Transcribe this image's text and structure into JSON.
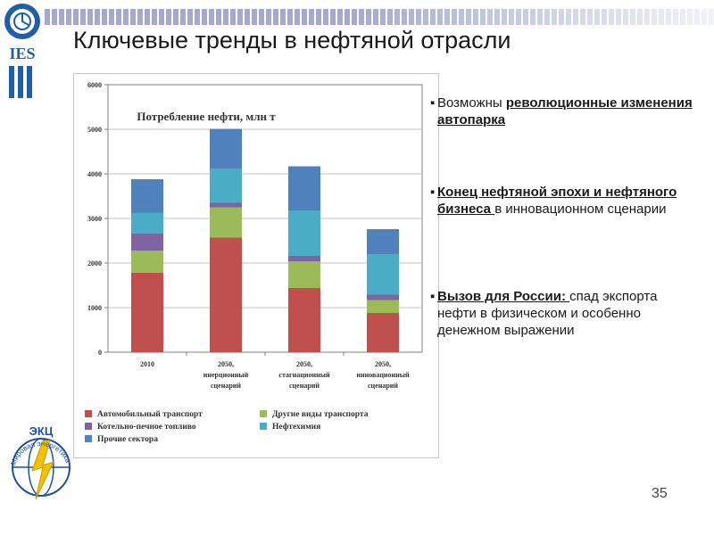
{
  "slide": {
    "title": "Ключевые тренды в нефтяной отрасли",
    "page_number": "35",
    "logo_top_text": "IES",
    "logo_bottom_text": "ЭКЦ",
    "logo_bottom_ring_text": "Мировая энергетика"
  },
  "bullets": [
    {
      "marker": "▪",
      "parts": [
        {
          "text": "Возможны ",
          "style": "normal"
        },
        {
          "text": "революционные изменения автопарка",
          "style": "bold-underline"
        }
      ]
    },
    {
      "marker": "▪",
      "parts": [
        {
          "text": " Конец нефтяной эпохи и нефтяного бизнеса ",
          "style": "bold-underline"
        },
        {
          "text": "в инновационном сценарии",
          "style": "normal"
        }
      ]
    },
    {
      "marker": "▪",
      "parts": [
        {
          "text": "Вызов для России: ",
          "style": "bold-underline"
        },
        {
          "text": " спад экспорта нефти в физическом и особенно денежном выражении",
          "style": "normal"
        }
      ]
    }
  ],
  "chart_data": {
    "type": "bar",
    "stacked": true,
    "title": "Потребление нефти, млн т",
    "categories": [
      "2010",
      "2050, инерционный сценарий",
      "2050, стагнационный сценарий",
      "2050, инновационный сценарий"
    ],
    "category_lines": [
      [
        "2010"
      ],
      [
        "2050,",
        "инерционный",
        "сценарий"
      ],
      [
        "2050,",
        "стагнационный",
        "сценарий"
      ],
      [
        "2050,",
        "инновационный",
        "сценарий"
      ]
    ],
    "ylim": [
      0,
      6000
    ],
    "yticks": [
      "0",
      "1000",
      "2000",
      "3000",
      "4000",
      "5000",
      "6000"
    ],
    "grid": true,
    "legend_position": "bottom",
    "series": [
      {
        "name": "Автомобильный транспорт",
        "color": "#c0504d",
        "values": [
          1780,
          2570,
          1440,
          880
        ]
      },
      {
        "name": "Другие виды транспорта",
        "color": "#9bbb59",
        "values": [
          500,
          680,
          600,
          290
        ]
      },
      {
        "name": "Котельно-печное топливо",
        "color": "#8064a2",
        "values": [
          380,
          100,
          120,
          120
        ]
      },
      {
        "name": "Нефтехимия",
        "color": "#4bacc6",
        "values": [
          470,
          770,
          1020,
          910
        ]
      },
      {
        "name": "Прочие сектора",
        "color": "#4f81bd",
        "values": [
          750,
          890,
          990,
          560
        ]
      }
    ]
  }
}
